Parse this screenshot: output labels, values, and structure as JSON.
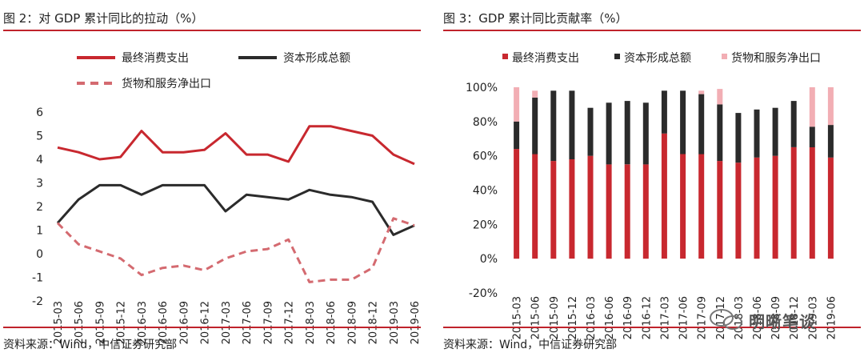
{
  "charts": [
    {
      "title": "图 2：对 GDP 累计同比的拉动（%）",
      "source": "资料来源：Wind，中信证券研究部"
    },
    {
      "title": "图 3：GDP 累计同比贡献率（%）",
      "source": "资料来源：Wind，中信证券研究部"
    }
  ],
  "watermark": "明晰笔谈",
  "chart_data": [
    {
      "type": "line",
      "title": "图 2：对 GDP 累计同比的拉动（%）",
      "xlabel": "",
      "ylabel": "",
      "ylim": [
        -2,
        6
      ],
      "yticks": [
        "6",
        "5",
        "4",
        "3",
        "2",
        "1",
        "0",
        "-1",
        "-2"
      ],
      "categories": [
        "2015-03",
        "2015-06",
        "2015-09",
        "2015-12",
        "2016-03",
        "2016-06",
        "2016-09",
        "2016-12",
        "2017-03",
        "2017-06",
        "2017-09",
        "2017-12",
        "2018-03",
        "2018-06",
        "2018-09",
        "2018-12",
        "2019-03",
        "2019-06"
      ],
      "series": [
        {
          "name": "最终消费支出",
          "color": "#c8282f",
          "dash": "solid",
          "values": [
            4.5,
            4.3,
            4.0,
            4.1,
            5.2,
            4.3,
            4.3,
            4.4,
            5.1,
            4.2,
            4.2,
            3.9,
            5.4,
            5.4,
            5.2,
            5.0,
            4.2,
            3.8
          ]
        },
        {
          "name": "资本形成总额",
          "color": "#2b2b2b",
          "dash": "solid",
          "values": [
            1.3,
            2.3,
            2.9,
            2.9,
            2.5,
            2.9,
            2.9,
            2.9,
            1.8,
            2.5,
            2.4,
            2.3,
            2.7,
            2.5,
            2.4,
            2.2,
            0.8,
            1.2
          ]
        },
        {
          "name": "货物和服务净出口",
          "color": "#d46a70",
          "dash": "dashed",
          "values": [
            1.3,
            0.4,
            0.1,
            -0.2,
            -0.9,
            -0.6,
            -0.5,
            -0.7,
            -0.2,
            0.1,
            0.2,
            0.6,
            -1.2,
            -1.1,
            -1.1,
            -0.6,
            1.5,
            1.2
          ]
        }
      ],
      "legend": "top",
      "grid": false
    },
    {
      "type": "bar",
      "stacked": true,
      "title": "图 3：GDP 累计同比贡献率（%）",
      "xlabel": "",
      "ylabel": "",
      "ylim": [
        -20,
        100
      ],
      "yticks": [
        "100%",
        "80%",
        "60%",
        "40%",
        "20%",
        "0%",
        "-20%"
      ],
      "categories": [
        "2015-03",
        "2015-06",
        "2015-09",
        "2015-12",
        "2016-03",
        "2016-06",
        "2016-09",
        "2016-12",
        "2017-03",
        "2017-06",
        "2017-09",
        "2017-12",
        "2018-03",
        "2018-06",
        "2018-09",
        "2018-12",
        "2019-03",
        "2019-06"
      ],
      "series": [
        {
          "name": "最终消费支出",
          "color": "#c8282f",
          "values": [
            64,
            61,
            57,
            58,
            60,
            55,
            55,
            55,
            73,
            61,
            61,
            57,
            56,
            59,
            60,
            65,
            65,
            59
          ]
        },
        {
          "name": "资本形成总额",
          "color": "#2b2b2b",
          "values": [
            16,
            33,
            41,
            40,
            28,
            36,
            37,
            36,
            25,
            37,
            35,
            33,
            29,
            28,
            28,
            27,
            12,
            19
          ]
        },
        {
          "name": "货物和服务净出口",
          "color": "#f2aeb4",
          "values": [
            20,
            4,
            0,
            0,
            0,
            0,
            0,
            0,
            0,
            0,
            2,
            9,
            0,
            0,
            0,
            0,
            23,
            22
          ]
        }
      ],
      "legend": "top",
      "grid": false
    }
  ]
}
